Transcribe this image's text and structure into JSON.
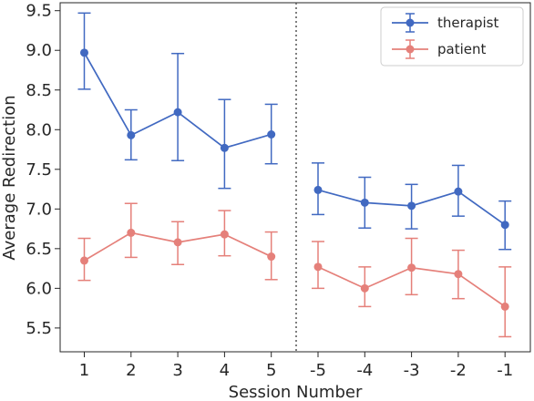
{
  "chart_data": {
    "type": "line",
    "xlabel": "Session Number",
    "ylabel": "Average Redirection",
    "categories": [
      "1",
      "2",
      "3",
      "4",
      "5",
      "-5",
      "-4",
      "-3",
      "-2",
      "-1"
    ],
    "yticks": [
      "5.5",
      "6.0",
      "6.5",
      "7.0",
      "7.5",
      "8.0",
      "8.5",
      "9.0",
      "9.5"
    ],
    "ylim": [
      5.2,
      9.6
    ],
    "divider": "dotted vertical line between session 5 and session -5",
    "grid": false,
    "legend_position": "top-right",
    "series": [
      {
        "name": "therapist",
        "color": "#4169c1",
        "segments": [
          {
            "values": [
              8.97,
              7.93,
              8.22,
              7.77,
              7.94
            ],
            "err_low": [
              8.51,
              7.62,
              7.61,
              7.26,
              7.57
            ],
            "err_high": [
              9.47,
              8.25,
              8.96,
              8.38,
              8.32
            ]
          },
          {
            "values": [
              7.24,
              7.08,
              7.04,
              7.22,
              6.8
            ],
            "err_low": [
              6.93,
              6.76,
              6.75,
              6.91,
              6.49
            ],
            "err_high": [
              7.58,
              7.4,
              7.31,
              7.55,
              7.1
            ]
          }
        ]
      },
      {
        "name": "patient",
        "color": "#e5807a",
        "segments": [
          {
            "values": [
              6.35,
              6.7,
              6.58,
              6.68,
              6.4
            ],
            "err_low": [
              6.1,
              6.39,
              6.3,
              6.41,
              6.11
            ],
            "err_high": [
              6.63,
              7.07,
              6.84,
              6.98,
              6.71
            ]
          },
          {
            "values": [
              6.27,
              6.0,
              6.26,
              6.18,
              5.77
            ],
            "err_low": [
              6.0,
              5.77,
              5.92,
              5.87,
              5.39
            ],
            "err_high": [
              6.59,
              6.27,
              6.63,
              6.48,
              6.27
            ]
          }
        ]
      }
    ]
  }
}
